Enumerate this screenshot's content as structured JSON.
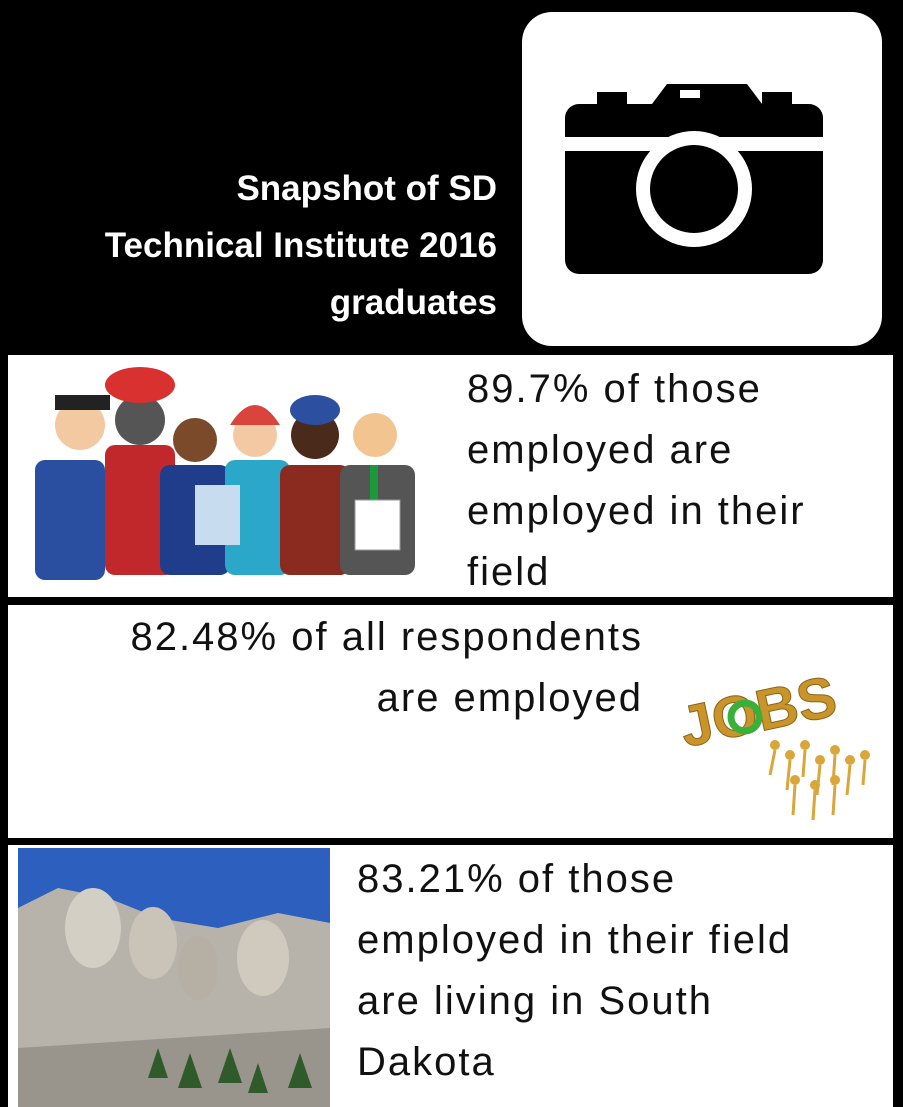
{
  "header": {
    "title_lines": [
      "Snapshot of SD",
      "Technical Institute 2016",
      "graduates"
    ]
  },
  "panels": [
    {
      "lines": [
        "89.7% of those",
        "employed are",
        "employed in their",
        "field"
      ]
    },
    {
      "lines": [
        "82.48% of all respondents",
        "are employed"
      ],
      "image_text": "JOBS"
    },
    {
      "lines": [
        "83.21% of those",
        "employed in their field",
        "are living in South",
        "Dakota"
      ]
    }
  ]
}
